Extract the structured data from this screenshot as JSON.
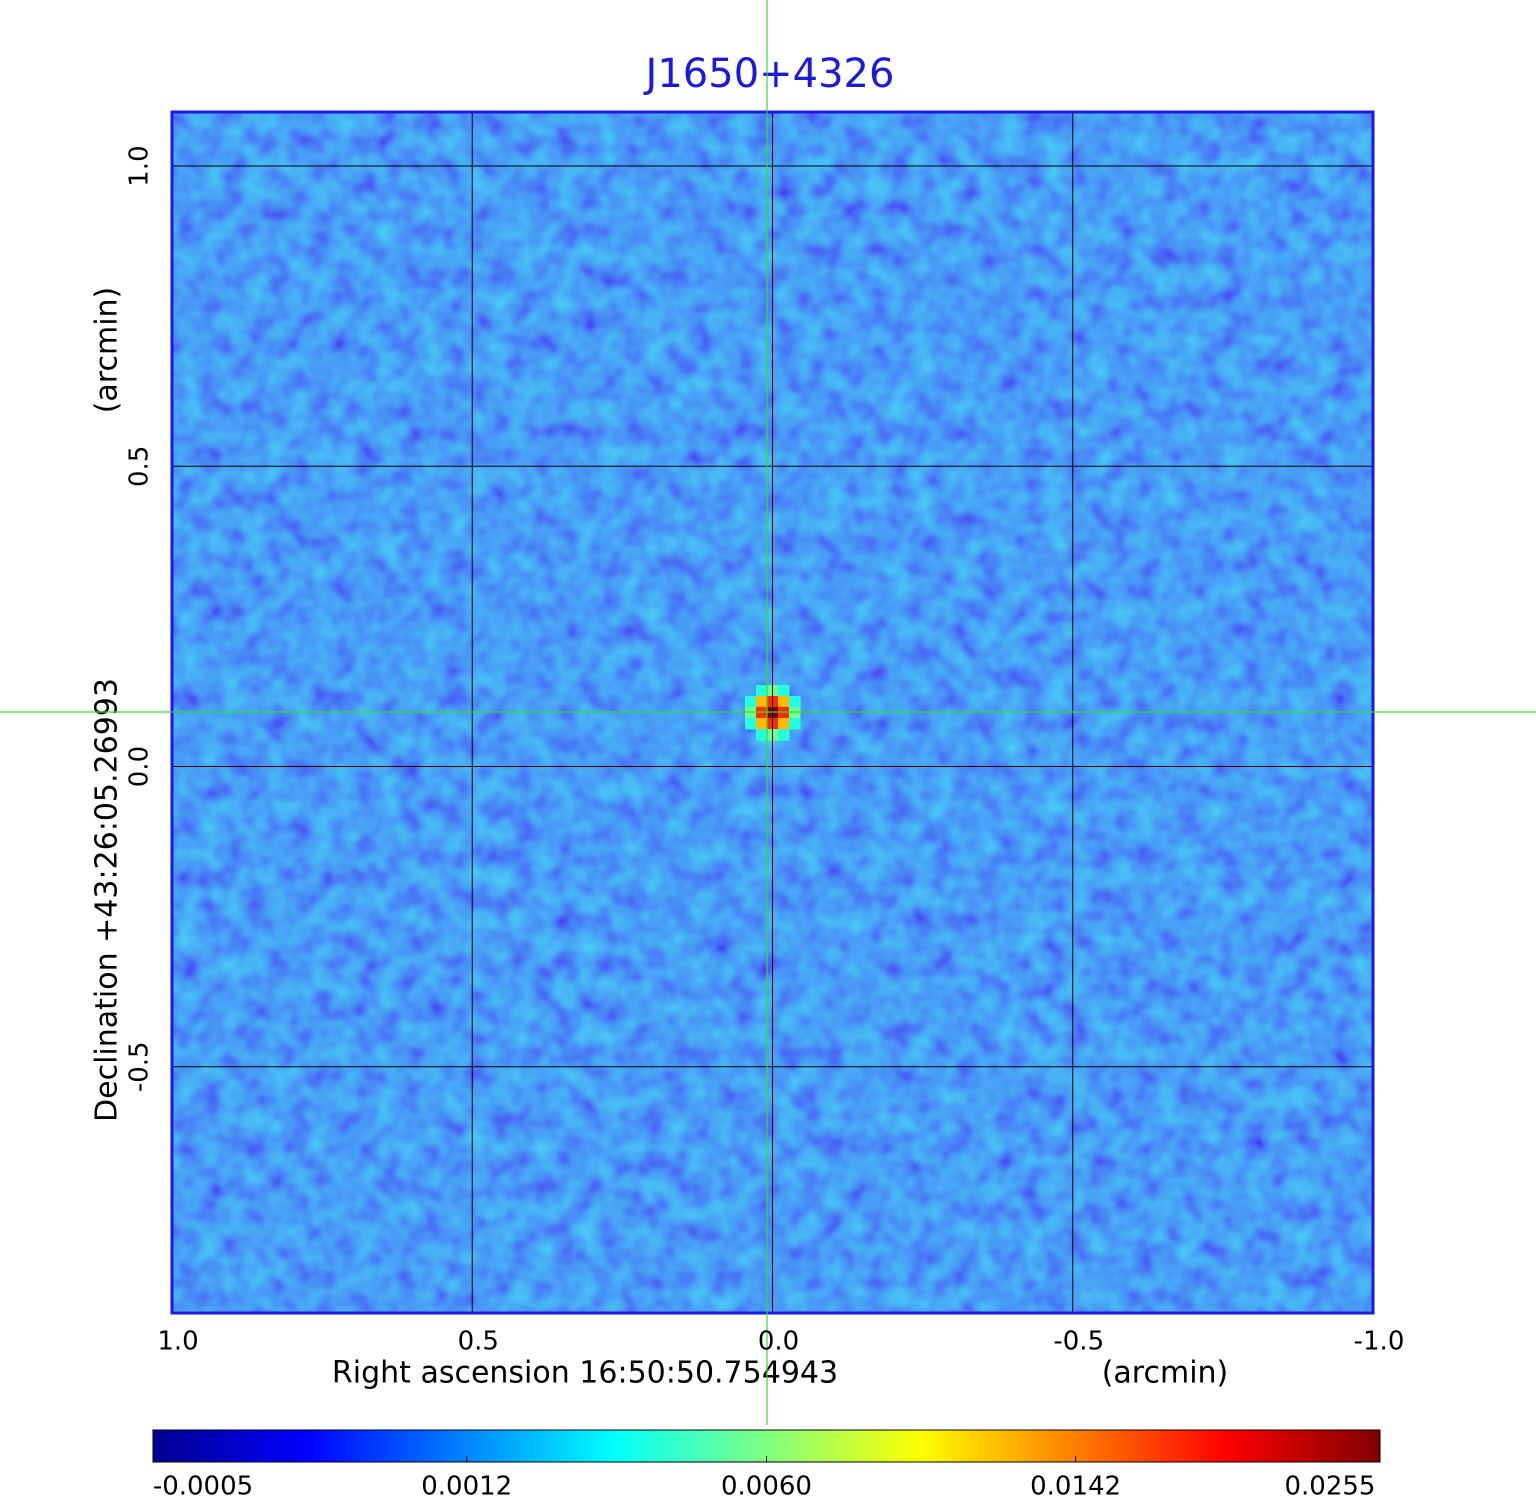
{
  "chart_data": {
    "type": "image",
    "title": "J1650+4326",
    "x_label": "Right ascension  16:50:50.754943",
    "x_unit": "(arcmin)",
    "y_label": "Declination  +43:26:05.26993",
    "y_unit": "(arcmin)",
    "xlim": [
      1.0,
      -1.0
    ],
    "ylim": [
      -0.91,
      1.09
    ],
    "xticks": [
      {
        "value": 1.0,
        "label": "1.0"
      },
      {
        "value": 0.5,
        "label": "0.5"
      },
      {
        "value": 0.0,
        "label": "0.0"
      },
      {
        "value": -0.5,
        "label": "-0.5"
      },
      {
        "value": -1.0,
        "label": "-1.0"
      }
    ],
    "yticks": [
      {
        "value": 1.0,
        "label": "1.0"
      },
      {
        "value": 0.5,
        "label": "0.5"
      },
      {
        "value": 0.0,
        "label": "0.0"
      },
      {
        "value": -0.5,
        "label": "-0.5"
      }
    ],
    "grid": true,
    "colormap": "jet",
    "color_scale": "sqrt",
    "clim": [
      -0.0005,
      0.0255
    ],
    "colorbar_ticks": [
      -0.0005,
      0.0012,
      0.006,
      0.0142,
      0.0255
    ],
    "colorbar_tick_labels": [
      "-0.0005",
      "0.0012",
      "0.0060",
      "0.0142",
      "0.0255"
    ],
    "source": {
      "x": 0.0,
      "y": 0.09,
      "peak": 0.0255
    }
  }
}
